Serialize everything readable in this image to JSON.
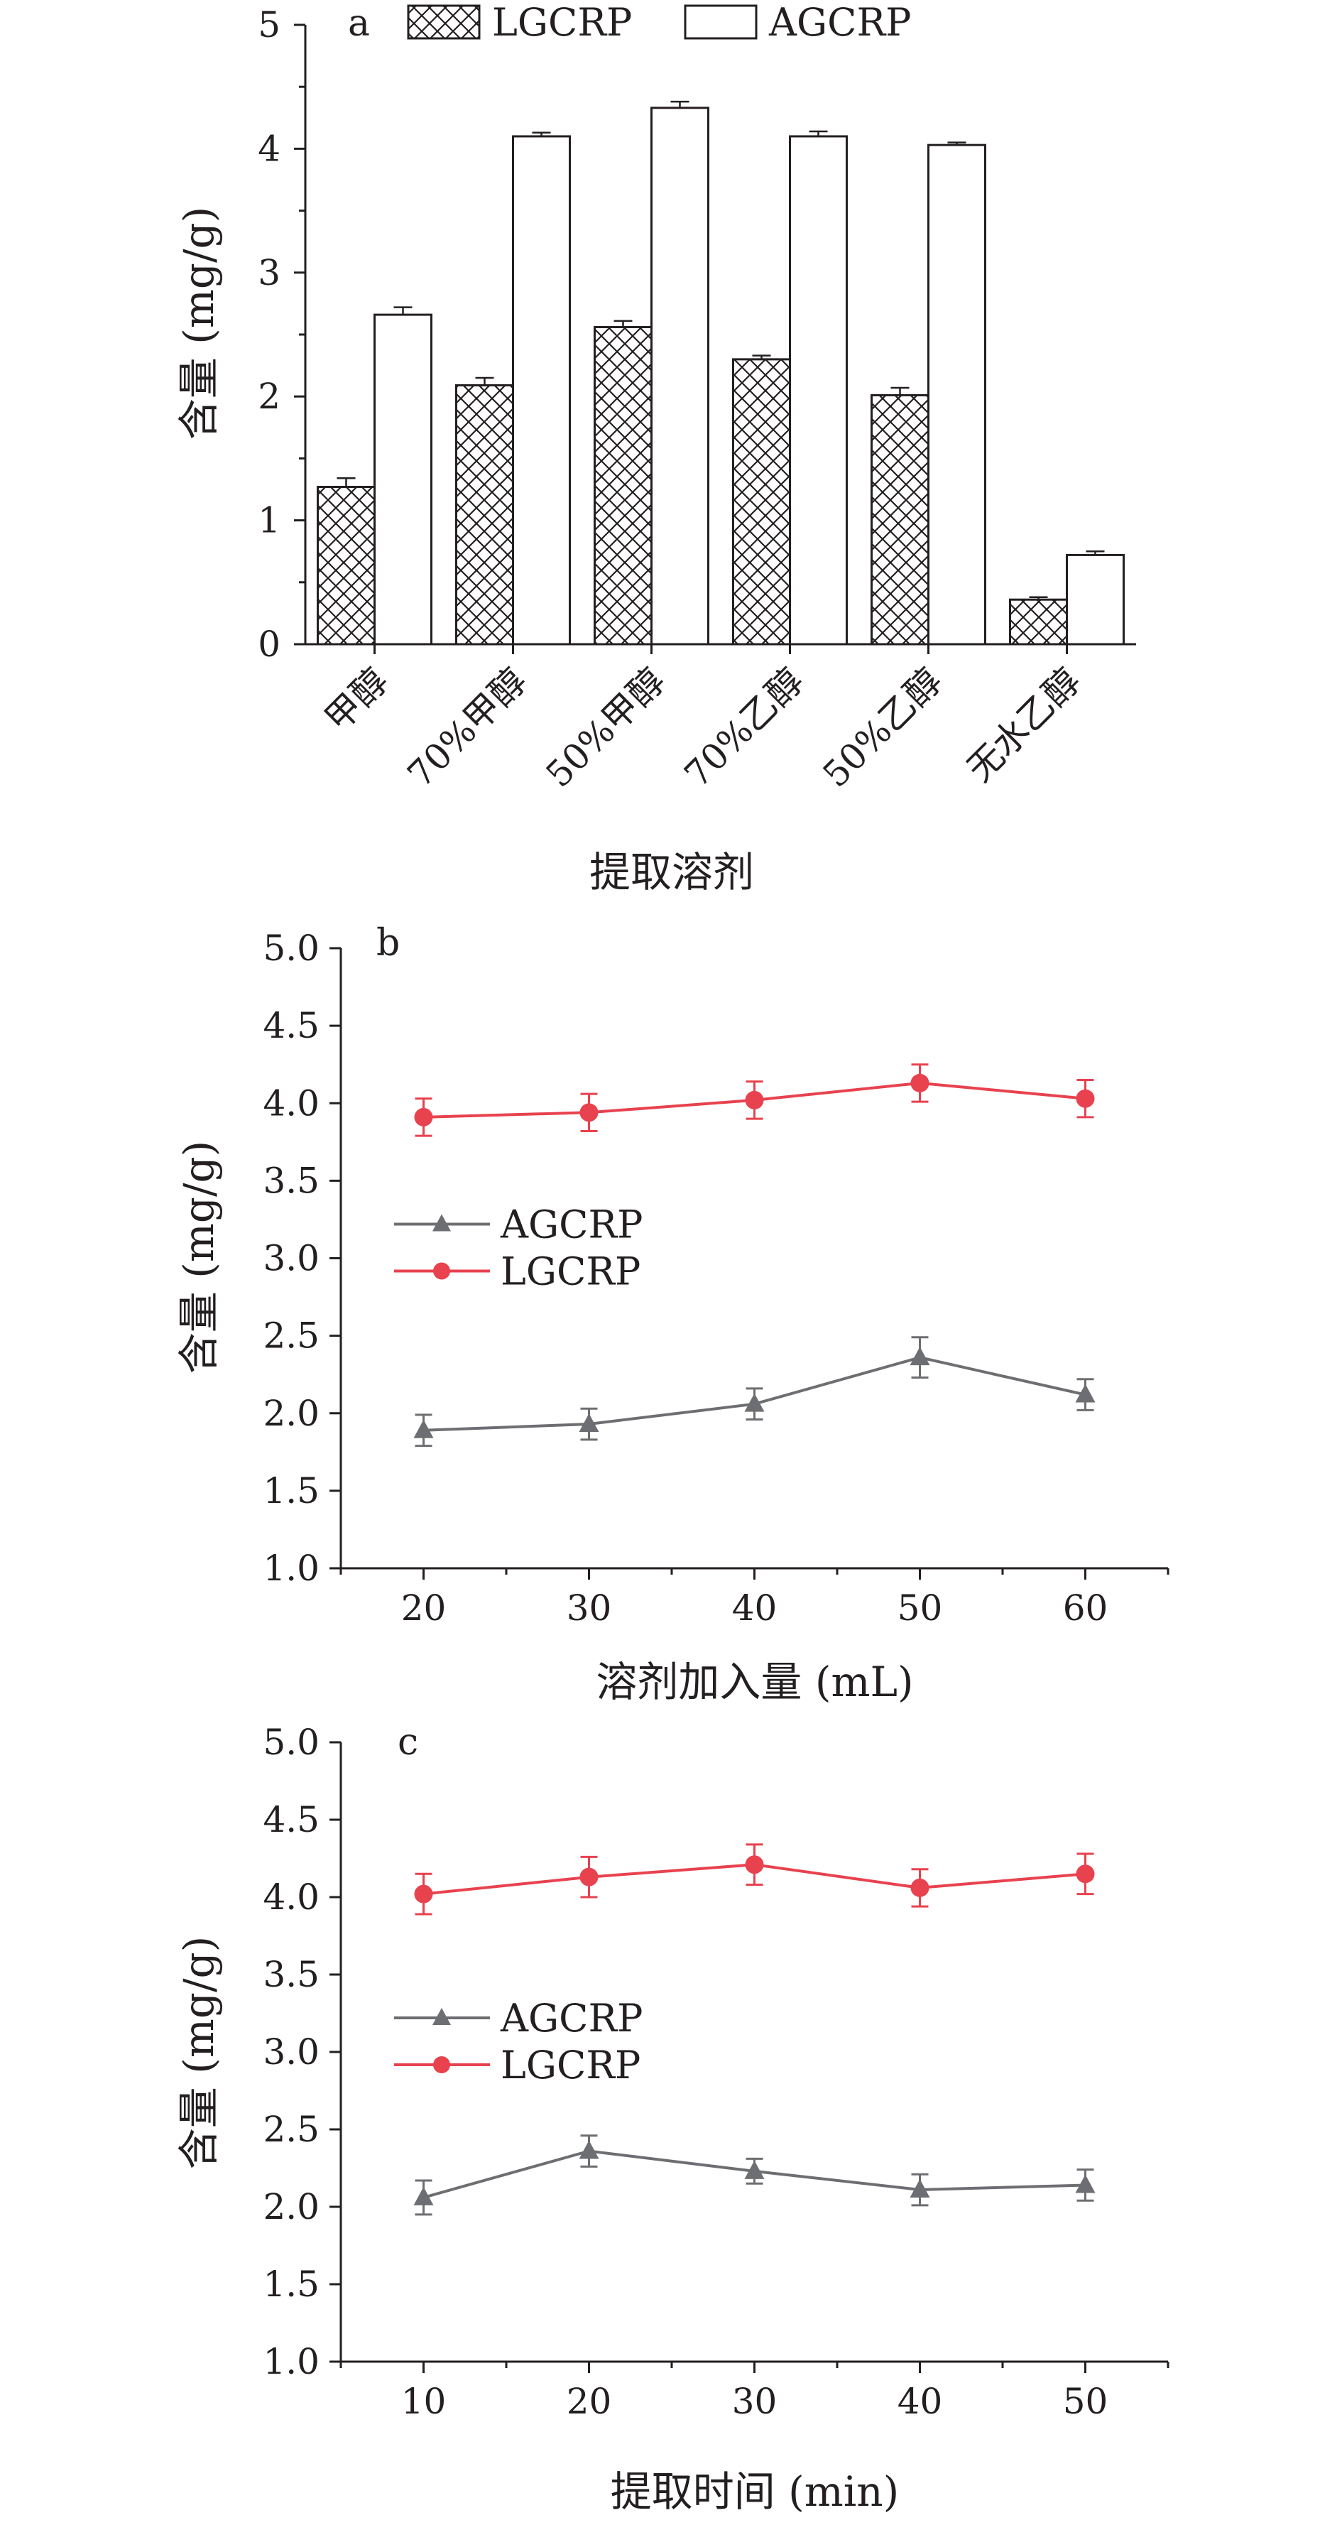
{
  "colors": {
    "axis": "#231f20",
    "agcrp_line": "#6d6e71",
    "lgcrp_line": "#e8424f",
    "bar_fill": "#ffffff"
  },
  "chart_data": [
    {
      "type": "bar",
      "panel_label": "a",
      "title": "",
      "xlabel": "提取溶剂",
      "ylabel": "含量 (mg/g)",
      "ylim": [
        0,
        5
      ],
      "yticks": [
        "0",
        "1",
        "2",
        "3",
        "4",
        "5"
      ],
      "categories": [
        "甲醇",
        "70%甲醇",
        "50%甲醇",
        "70%乙醇",
        "50%乙醇",
        "无水乙醇"
      ],
      "legend_position": "top",
      "series": [
        {
          "name": "LGCRP",
          "pattern": "crosshatch",
          "values": [
            1.27,
            2.09,
            2.56,
            2.3,
            2.01,
            0.36
          ],
          "errors": [
            0.07,
            0.06,
            0.05,
            0.03,
            0.06,
            0.02
          ]
        },
        {
          "name": "AGCRP",
          "pattern": "open",
          "values": [
            2.66,
            4.1,
            4.33,
            4.1,
            4.03,
            0.72
          ],
          "errors": [
            0.06,
            0.03,
            0.05,
            0.04,
            0.02,
            0.03
          ]
        }
      ]
    },
    {
      "type": "line",
      "panel_label": "b",
      "title": "",
      "xlabel": "溶剂加入量 (mL)",
      "ylabel": "含量 (mg/g)",
      "xlim": [
        15,
        65
      ],
      "ylim": [
        1.0,
        5.0
      ],
      "x": [
        20,
        30,
        40,
        50,
        60
      ],
      "xticks": [
        "20",
        "30",
        "40",
        "50",
        "60"
      ],
      "yticks": [
        "1.0",
        "1.5",
        "2.0",
        "2.5",
        "3.0",
        "3.5",
        "4.0",
        "4.5",
        "5.0"
      ],
      "legend_position": "left-middle",
      "series": [
        {
          "name": "AGCRP",
          "marker": "triangle",
          "color": "#6d6e71",
          "values": [
            1.89,
            1.93,
            2.06,
            2.36,
            2.12
          ],
          "errors": [
            0.1,
            0.1,
            0.1,
            0.13,
            0.1
          ]
        },
        {
          "name": "LGCRP",
          "marker": "circle",
          "color": "#e8424f",
          "values": [
            3.91,
            3.94,
            4.02,
            4.13,
            4.03
          ],
          "errors": [
            0.12,
            0.12,
            0.12,
            0.12,
            0.12
          ]
        }
      ]
    },
    {
      "type": "line",
      "panel_label": "c",
      "title": "",
      "xlabel": "提取时间 (min)",
      "ylabel": "含量 (mg/g)",
      "xlim": [
        5,
        55
      ],
      "ylim": [
        1.0,
        5.0
      ],
      "x": [
        10,
        20,
        30,
        40,
        50
      ],
      "xticks": [
        "10",
        "20",
        "30",
        "40",
        "50"
      ],
      "yticks": [
        "1.0",
        "1.5",
        "2.0",
        "2.5",
        "3.0",
        "3.5",
        "4.0",
        "4.5",
        "5.0"
      ],
      "legend_position": "left-middle",
      "series": [
        {
          "name": "AGCRP",
          "marker": "triangle",
          "color": "#6d6e71",
          "values": [
            2.06,
            2.36,
            2.23,
            2.11,
            2.14
          ],
          "errors": [
            0.11,
            0.1,
            0.08,
            0.1,
            0.1
          ]
        },
        {
          "name": "LGCRP",
          "marker": "circle",
          "color": "#e8424f",
          "values": [
            4.02,
            4.13,
            4.21,
            4.06,
            4.15
          ],
          "errors": [
            0.13,
            0.13,
            0.13,
            0.12,
            0.13
          ]
        }
      ]
    }
  ]
}
